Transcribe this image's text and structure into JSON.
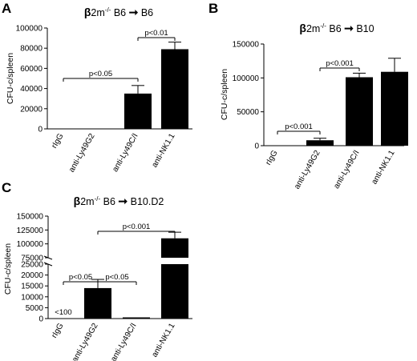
{
  "chart_data": [
    {
      "panel_label": "A",
      "type": "bar",
      "title": {
        "beta": "β",
        "main": "2m",
        "sup": "-/-",
        "source": "B6",
        "arrow": "➞",
        "target": "B6"
      },
      "ylabel": "CFU-c/spleen",
      "ylim": [
        0,
        100000
      ],
      "yticks": [
        0,
        20000,
        40000,
        60000,
        80000,
        100000
      ],
      "ytick_labels": [
        "0",
        "20000",
        "40000",
        "60000",
        "80000",
        "100000"
      ],
      "categories": [
        "rIgG",
        "anti-Ly49G2",
        "anti-Ly49C/I",
        "anti-NK1.1"
      ],
      "values": [
        0,
        0,
        35000,
        79000
      ],
      "errors": [
        0,
        0,
        8000,
        7000
      ],
      "annotations": [
        {
          "text": "p<0.05",
          "from": 0,
          "to": 2
        },
        {
          "text": "p<0.01",
          "from": 2,
          "to": 3
        }
      ]
    },
    {
      "panel_label": "B",
      "type": "bar",
      "title": {
        "beta": "β",
        "main": "2m",
        "sup": "-/-",
        "source": "B6",
        "arrow": "➞",
        "target": "B10"
      },
      "ylabel": "CFU-c/spleen",
      "ylim": [
        0,
        150000
      ],
      "yticks": [
        0,
        50000,
        100000,
        150000
      ],
      "ytick_labels": [
        "0",
        "50000",
        "100000",
        "150000"
      ],
      "categories": [
        "rIgG",
        "anti-Ly49G2",
        "anti-Ly49C/I",
        "anti-NK1.1"
      ],
      "values": [
        0,
        8000,
        101000,
        109000
      ],
      "errors": [
        0,
        3000,
        6000,
        20000
      ],
      "annotations": [
        {
          "text": "p<0.001",
          "from": 0,
          "to": 1
        },
        {
          "text": "p<0.001",
          "from": 1,
          "to": 2
        }
      ]
    },
    {
      "panel_label": "C",
      "type": "bar",
      "title": {
        "beta": "β",
        "main": "2m",
        "sup": "-/-",
        "source": "B6",
        "arrow": "➞",
        "target": "B10.D2"
      },
      "ylabel": "CFU-c/spleen",
      "broken_axis": true,
      "lower_ylim": [
        0,
        25000
      ],
      "upper_ylim": [
        75000,
        150000
      ],
      "lower_ticks": [
        0,
        5000,
        10000,
        15000,
        20000,
        25000
      ],
      "lower_tick_labels": [
        "0",
        "5000",
        "10000",
        "15000",
        "20000",
        "25000"
      ],
      "upper_ticks": [
        75000,
        100000,
        125000,
        150000
      ],
      "upper_tick_labels": [
        "75000",
        "100000",
        "125000",
        "150000"
      ],
      "categories": [
        "rIgG",
        "anti-Ly49G2",
        "anti-Ly49C/I",
        "anti-NK1.1"
      ],
      "values": [
        0,
        14000,
        500,
        110000
      ],
      "errors": [
        0,
        4000,
        0,
        11000
      ],
      "value_labels": [
        "<100",
        "",
        "",
        ""
      ],
      "annotations": [
        {
          "text": "p<0.05",
          "from": 0,
          "to": 1
        },
        {
          "text": "p<0.05",
          "from": 1,
          "to": 2
        },
        {
          "text": "p<0.001",
          "from": 1,
          "to": 3
        }
      ]
    }
  ]
}
